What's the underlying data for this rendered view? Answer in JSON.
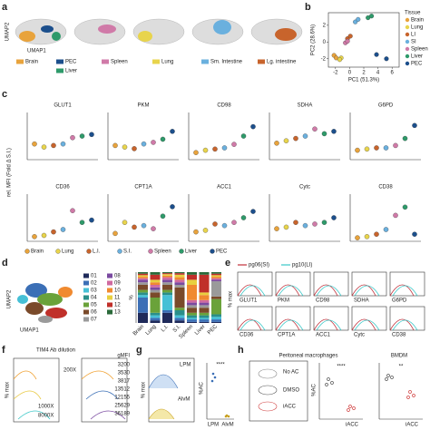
{
  "labels": [
    "a",
    "b",
    "c",
    "d",
    "e",
    "f",
    "g",
    "h"
  ],
  "panel_a": {
    "x_label": "UMAP1",
    "y_label": "UMAP2",
    "legend": [
      {
        "name": "Brain",
        "color": "#e8a33c"
      },
      {
        "name": "PEC",
        "color": "#1c4f8c"
      },
      {
        "name": "Spleen",
        "color": "#d07aa8"
      },
      {
        "name": "Lung",
        "color": "#e8d44c"
      },
      {
        "name": "Sm. Intestine",
        "color": "#6ab0de"
      },
      {
        "name": "Lg. intestine",
        "color": "#c8642c"
      },
      {
        "name": "Liver",
        "color": "#2e9a6a"
      }
    ]
  },
  "panel_c": {
    "y_label": "rel. MFI (Fold Δ S.I.)",
    "legend": [
      {
        "name": "Brain",
        "color": "#e8a33c"
      },
      {
        "name": "Lung",
        "color": "#e8d44c"
      },
      {
        "name": "L.I.",
        "color": "#c8642c"
      },
      {
        "name": "S.I.",
        "color": "#6ab0de"
      },
      {
        "name": "Spleen",
        "color": "#d07aa8"
      },
      {
        "name": "Liver",
        "color": "#2e9a6a"
      },
      {
        "name": "PEC",
        "color": "#1c4f8c"
      }
    ]
  },
  "panel_d": {
    "x_label": "UMAP1",
    "y_label": "UMAP2"
  },
  "panel_e": {
    "legend": [
      "pg06(SI)",
      "pg10(LI)"
    ],
    "y_label": "% max",
    "markers": [
      "GLUT1",
      "PKM",
      "CD98",
      "SDHA",
      "G6PD",
      "CD36",
      "CPT1A",
      "ACC1",
      "Cytc",
      "CD38"
    ]
  },
  "panel_f": {
    "title": "TIM4 Ab dilution",
    "y_label": "% max",
    "dilutions": [
      "200X",
      "1000X",
      "8000X"
    ],
    "gmfi_title": "gMFI",
    "gmfi": [
      "3200",
      "3530",
      "3817",
      "13512",
      "12155",
      "25629",
      "36189"
    ]
  },
  "panel_g": {
    "y_label": "% max",
    "hist_labels": [
      "LPM",
      "AlvM"
    ],
    "dot_y_label": "%AC",
    "significance": "****",
    "groups": [
      "LPM",
      "AlvM"
    ]
  },
  "panel_h": {
    "title": "Peritoneal macrophages",
    "conditions": [
      "No AC",
      "DMSO",
      "iACC"
    ],
    "y_label": "%AC",
    "significance": "****",
    "bmdm_title": "BMDM",
    "bmdm_significance": "**",
    "groups": [
      "iACC",
      "iACC"
    ]
  },
  "chart_data": [
    {
      "type": "scatter",
      "x_label": "PC1 (51.3%)",
      "y_label": "PC2 (28.6%)",
      "legend_title": "Tissue",
      "xlim": [
        -3,
        7
      ],
      "ylim": [
        -3,
        3.5
      ],
      "xticks": [
        -2,
        0,
        2,
        4,
        6
      ],
      "yticks": [
        -2,
        0,
        2
      ],
      "series": [
        {
          "name": "Brain",
          "color": "#e8a33c",
          "x": [
            -2.2,
            -1.9
          ],
          "values": [
            -1.6,
            -1.9
          ]
        },
        {
          "name": "Lung",
          "color": "#e8d44c",
          "x": [
            -1.2,
            -1.4
          ],
          "values": [
            -1.9,
            -2.1
          ]
        },
        {
          "name": "LI",
          "color": "#c8642c",
          "x": [
            -0.3,
            0.1
          ],
          "values": [
            0.4,
            0.7
          ]
        },
        {
          "name": "SI",
          "color": "#6ab0de",
          "x": [
            0.8,
            1.2
          ],
          "values": [
            2.4,
            2.7
          ]
        },
        {
          "name": "Spleen",
          "color": "#d07aa8",
          "x": [
            -0.6,
            -0.3
          ],
          "values": [
            -0.1,
            0.1
          ]
        },
        {
          "name": "Liver",
          "color": "#2e9a6a",
          "x": [
            2.6,
            3.1
          ],
          "values": [
            2.9,
            3.1
          ]
        },
        {
          "name": "PEC",
          "color": "#1c4f8c",
          "x": [
            3.8,
            5.2
          ],
          "values": [
            -1.5,
            -2.0
          ]
        }
      ]
    },
    {
      "type": "strip",
      "title": "GLUT1",
      "ylim": [
        0,
        3
      ],
      "values": [
        1.0,
        0.8,
        0.9,
        1.0,
        1.4,
        1.5,
        1.6
      ]
    },
    {
      "type": "strip",
      "title": "PKM",
      "ylim": [
        0,
        3
      ],
      "values": [
        0.9,
        0.8,
        0.7,
        1.0,
        1.1,
        1.3,
        1.8
      ]
    },
    {
      "type": "strip",
      "title": "CD98",
      "ylim": [
        0,
        4
      ],
      "values": [
        0.6,
        0.8,
        0.9,
        1.0,
        1.3,
        2.0,
        2.8
      ]
    },
    {
      "type": "strip",
      "title": "SDHA",
      "ylim": [
        0,
        2
      ],
      "values": [
        0.7,
        0.8,
        0.9,
        1.0,
        1.3,
        1.1,
        1.2
      ]
    },
    {
      "type": "strip",
      "title": "G6PD",
      "ylim": [
        0,
        4
      ],
      "values": [
        0.8,
        0.9,
        1.0,
        1.0,
        1.2,
        1.8,
        2.9
      ]
    },
    {
      "type": "strip",
      "title": "CD36",
      "ylim": [
        0,
        4
      ],
      "values": [
        0.4,
        0.5,
        0.8,
        1.0,
        2.6,
        1.6,
        1.8
      ]
    },
    {
      "type": "strip",
      "title": "CPT1A",
      "ylim": [
        0,
        3
      ],
      "values": [
        0.5,
        1.2,
        0.9,
        1.0,
        0.8,
        1.6,
        2.2
      ]
    },
    {
      "type": "strip",
      "title": "ACC1",
      "ylim": [
        0,
        3
      ],
      "values": [
        0.6,
        0.7,
        1.1,
        1.0,
        1.2,
        1.5,
        1.9
      ]
    },
    {
      "type": "strip",
      "title": "Cytc",
      "ylim": [
        0,
        3
      ],
      "values": [
        0.8,
        0.9,
        1.2,
        1.0,
        1.1,
        1.2,
        1.5
      ]
    },
    {
      "type": "strip",
      "title": "CD38",
      "ylim": [
        0,
        4
      ],
      "values": [
        0.3,
        0.4,
        0.6,
        1.0,
        2.2,
        2.9,
        0.6
      ]
    },
    {
      "type": "stacked_bar",
      "y_label": "%",
      "categories": [
        "Brain",
        "Lung",
        "L.I.",
        "S.I.",
        "Spleen",
        "Liver",
        "PEC"
      ],
      "ylim": [
        0,
        100
      ],
      "series": [
        {
          "name": "01",
          "color": "#1f2a5a",
          "values": [
            20,
            5,
            20,
            5,
            2,
            2,
            2
          ]
        },
        {
          "name": "02",
          "color": "#3b6fb6",
          "values": [
            30,
            5,
            5,
            5,
            5,
            5,
            5
          ]
        },
        {
          "name": "03",
          "color": "#46c0d6",
          "values": [
            5,
            5,
            30,
            5,
            3,
            3,
            5
          ]
        },
        {
          "name": "04",
          "color": "#2a8f8a",
          "values": [
            5,
            5,
            5,
            10,
            5,
            5,
            5
          ]
        },
        {
          "name": "05",
          "color": "#6aa23a",
          "values": [
            5,
            30,
            5,
            5,
            5,
            5,
            30
          ]
        },
        {
          "name": "06",
          "color": "#7a4a2a",
          "values": [
            10,
            10,
            10,
            40,
            10,
            10,
            5
          ]
        },
        {
          "name": "07",
          "color": "#9a9a9a",
          "values": [
            5,
            5,
            5,
            5,
            5,
            5,
            30
          ]
        },
        {
          "name": "08",
          "color": "#7a4aa0",
          "values": [
            5,
            5,
            5,
            5,
            5,
            5,
            3
          ]
        },
        {
          "name": "09",
          "color": "#d06aa0",
          "values": [
            3,
            5,
            5,
            5,
            5,
            5,
            3
          ]
        },
        {
          "name": "10",
          "color": "#f08a30",
          "values": [
            3,
            5,
            3,
            5,
            30,
            10,
            3
          ]
        },
        {
          "name": "11",
          "color": "#e8d040",
          "values": [
            3,
            5,
            3,
            5,
            10,
            5,
            3
          ]
        },
        {
          "name": "12",
          "color": "#c0302a",
          "values": [
            3,
            10,
            2,
            3,
            10,
            35,
            3
          ]
        },
        {
          "name": "13",
          "color": "#2a6a3a",
          "values": [
            3,
            5,
            2,
            2,
            5,
            5,
            3
          ]
        }
      ]
    }
  ]
}
